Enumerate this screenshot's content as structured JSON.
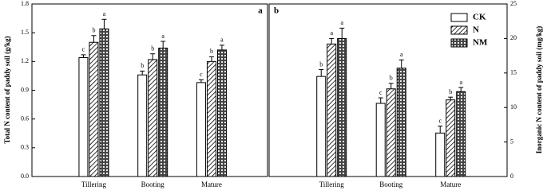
{
  "chart_data": [
    {
      "type": "bar",
      "panel_label": "a",
      "ylabel": "Total N content of paddy soil (g/kg)",
      "y_axis_side": "left",
      "categories": [
        "Tillering",
        "Booting",
        "Mature"
      ],
      "ylim": [
        0,
        1.8
      ],
      "yticks": [
        {
          "value": 0,
          "label": "0.0"
        },
        0.3,
        0.6,
        0.9,
        1.2,
        1.5,
        1.8
      ],
      "series": [
        {
          "color": "#ffffff",
          "pattern": "plain",
          "values": [
            1.24,
            1.06,
            0.98
          ],
          "errors": [
            0.03,
            0.04,
            0.03
          ],
          "letters": [
            "c",
            "b",
            "c"
          ]
        },
        {
          "color": "#ffffff",
          "pattern": "hatch",
          "values": [
            1.4,
            1.22,
            1.2
          ],
          "errors": [
            0.07,
            0.06,
            0.05
          ],
          "letters": [
            "b",
            "b",
            "b"
          ]
        },
        {
          "color": "#ffffff",
          "pattern": "cross",
          "values": [
            1.54,
            1.34,
            1.32
          ],
          "errors": [
            0.1,
            0.07,
            0.05
          ],
          "letters": [
            "a",
            "a",
            "a"
          ]
        }
      ]
    },
    {
      "type": "bar",
      "panel_label": "b",
      "ylabel": "Inorganic N content of paddy soil (mg/kg)",
      "y_axis_side": "right",
      "categories": [
        "Tillering",
        "Booting",
        "Mature"
      ],
      "ylim": [
        0,
        25
      ],
      "yticks": [
        0,
        5,
        10,
        15,
        20,
        25
      ],
      "legend": "upper right",
      "series": [
        {
          "name": "CK",
          "color": "#ffffff",
          "pattern": "plain",
          "values": [
            14.5,
            10.6,
            6.3
          ],
          "errors": [
            1.0,
            0.8,
            1.0
          ],
          "letters": [
            "b",
            "c",
            "c"
          ]
        },
        {
          "name": "N",
          "color": "#ffffff",
          "pattern": "hatch",
          "values": [
            19.2,
            12.7,
            11.1
          ],
          "errors": [
            0.8,
            0.8,
            0.4
          ],
          "letters": [
            "a",
            "b",
            "b"
          ]
        },
        {
          "name": "NM",
          "color": "#ffffff",
          "pattern": "cross",
          "values": [
            20.0,
            15.7,
            12.3
          ],
          "errors": [
            1.5,
            1.2,
            0.6
          ],
          "letters": [
            "a",
            "a",
            "a"
          ]
        }
      ]
    }
  ]
}
